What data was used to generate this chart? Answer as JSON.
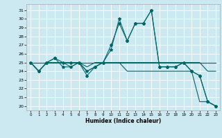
{
  "xlabel": "Humidex (Indice chaleur)",
  "background_color": "#cce8f0",
  "grid_color": "#ffffff",
  "line_color": "#006666",
  "xlim": [
    -0.5,
    23.5
  ],
  "ylim": [
    19.5,
    31.7
  ],
  "yticks": [
    20,
    21,
    22,
    23,
    24,
    25,
    26,
    27,
    28,
    29,
    30,
    31
  ],
  "xticks": [
    0,
    1,
    2,
    3,
    4,
    5,
    6,
    7,
    8,
    9,
    10,
    11,
    12,
    13,
    14,
    15,
    16,
    17,
    18,
    19,
    20,
    21,
    22,
    23
  ],
  "series": [
    {
      "x": [
        0,
        1,
        2,
        3,
        4,
        5,
        6,
        7,
        8,
        9,
        10,
        11,
        12,
        13,
        14,
        15,
        16,
        17,
        18,
        19,
        20,
        21,
        22,
        23
      ],
      "y": [
        25,
        25,
        25,
        25,
        25,
        25,
        25,
        25,
        25,
        25,
        25,
        25,
        25,
        25,
        25,
        25,
        25,
        25,
        25,
        25,
        25,
        25,
        25,
        25
      ],
      "marker": null
    },
    {
      "x": [
        0,
        1,
        2,
        3,
        4,
        5,
        6,
        7,
        8,
        9,
        10,
        11,
        12,
        13,
        14,
        15,
        16,
        17,
        18,
        19,
        20,
        21,
        22,
        23
      ],
      "y": [
        25,
        24,
        25,
        25,
        25,
        24.5,
        25,
        24.5,
        25,
        25,
        25,
        25,
        25,
        25,
        25,
        25,
        25,
        25,
        25,
        25,
        25,
        25,
        24,
        24
      ],
      "marker": null
    },
    {
      "x": [
        0,
        1,
        2,
        3,
        4,
        5,
        6,
        7,
        8,
        9,
        10,
        11,
        12,
        13,
        14,
        15,
        16,
        17,
        18,
        19,
        20,
        21,
        22,
        23
      ],
      "y": [
        25,
        24,
        25,
        25.5,
        25,
        25,
        25,
        23.5,
        24.5,
        25,
        27,
        29.5,
        27.5,
        29.5,
        29.5,
        31,
        24.5,
        24.5,
        24.5,
        25,
        24,
        23.5,
        20.5,
        20
      ],
      "marker": "D"
    },
    {
      "x": [
        0,
        1,
        2,
        3,
        4,
        5,
        6,
        7,
        8,
        9,
        10,
        11,
        12,
        13,
        14,
        15,
        16,
        17,
        18,
        19,
        20,
        21,
        22,
        23
      ],
      "y": [
        25,
        24,
        25,
        25.5,
        24.5,
        24.5,
        25,
        24,
        24.5,
        25,
        26.5,
        30,
        27.5,
        29.5,
        29.5,
        31,
        24.5,
        24.5,
        24.5,
        25,
        24,
        23.5,
        20.5,
        20
      ],
      "marker": "*"
    },
    {
      "x": [
        0,
        1,
        2,
        3,
        4,
        5,
        6,
        7,
        8,
        9,
        10,
        11,
        12,
        13,
        14,
        15,
        16,
        17,
        18,
        19,
        20,
        21,
        22,
        23
      ],
      "y": [
        25,
        24,
        25,
        25,
        25,
        25,
        25,
        24,
        24.5,
        25,
        25,
        25,
        24,
        24,
        24,
        24,
        24,
        24,
        24,
        24,
        24,
        20.5,
        20.5,
        20
      ],
      "marker": null
    }
  ]
}
